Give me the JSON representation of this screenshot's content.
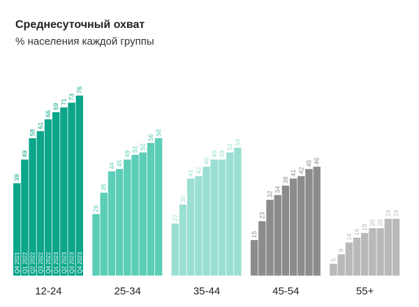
{
  "chart_data": {
    "type": "bar",
    "title": "Среднесуточный охват",
    "subtitle": "% населения каждой группы",
    "categories": [
      "Q4 2021",
      "Q1 2022",
      "Q2 2022",
      "Q3 2022",
      "Q4 2022",
      "Q1 2023",
      "Q2 2023",
      "Q3 2023",
      "Q4 2023"
    ],
    "series": [
      {
        "name": "12-24",
        "color": "#0aa58a",
        "values": [
          39,
          49,
          58,
          61,
          66,
          69,
          71,
          73,
          76
        ]
      },
      {
        "name": "25-34",
        "color": "#5ccdb6",
        "values": [
          26,
          35,
          44,
          45,
          49,
          51,
          52,
          56,
          58
        ]
      },
      {
        "name": "35-44",
        "color": "#9adfd2",
        "values": [
          22,
          30,
          41,
          42,
          46,
          49,
          49,
          52,
          54
        ]
      },
      {
        "name": "45-54",
        "color": "#8c8c8c",
        "values": [
          15,
          23,
          32,
          34,
          38,
          41,
          42,
          45,
          46
        ]
      },
      {
        "name": "55+",
        "color": "#b9b9b9",
        "values": [
          5,
          9,
          14,
          16,
          18,
          20,
          20,
          24,
          24
        ]
      }
    ]
  }
}
